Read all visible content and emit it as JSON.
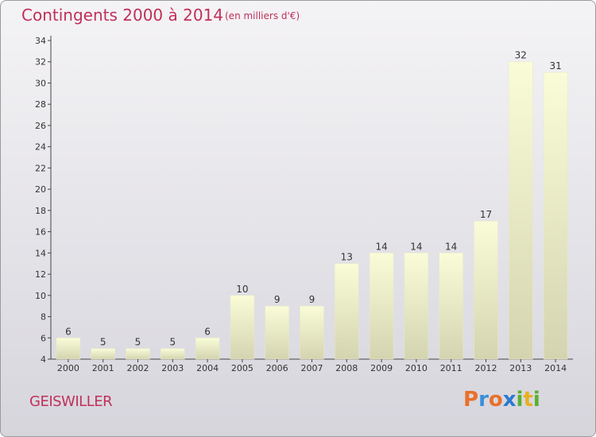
{
  "header": {
    "title": "Contingents 2000 à 2014",
    "subtitle": "(en milliers d'€)"
  },
  "footer": {
    "commune": "GEISWILLER",
    "logo": [
      "P",
      "r",
      "o",
      "x",
      "i",
      "t",
      "i"
    ],
    "logo_colors": [
      "#e8702a",
      "#3a8fd8",
      "#e8702a",
      "#2a7ad0",
      "#58b030",
      "#e8b020",
      "#58b030"
    ]
  },
  "colors": {
    "bar_light": "#fafcd8",
    "bar_dark": "#d4d4b0",
    "title": "#c0305a"
  },
  "chart_data": {
    "type": "bar",
    "categories": [
      "2000",
      "2001",
      "2002",
      "2003",
      "2004",
      "2005",
      "2006",
      "2007",
      "2008",
      "2009",
      "2010",
      "2011",
      "2012",
      "2013",
      "2014"
    ],
    "values": [
      6,
      5,
      5,
      5,
      6,
      10,
      9,
      9,
      13,
      14,
      14,
      14,
      17,
      32,
      31
    ],
    "title": "Contingents 2000 à 2014",
    "xlabel": "",
    "ylabel": "",
    "ylim": [
      4,
      34
    ],
    "yticks": [
      4,
      6,
      8,
      10,
      12,
      14,
      16,
      18,
      20,
      22,
      24,
      26,
      28,
      30,
      32,
      34
    ],
    "grid": false,
    "data_labels": true
  }
}
